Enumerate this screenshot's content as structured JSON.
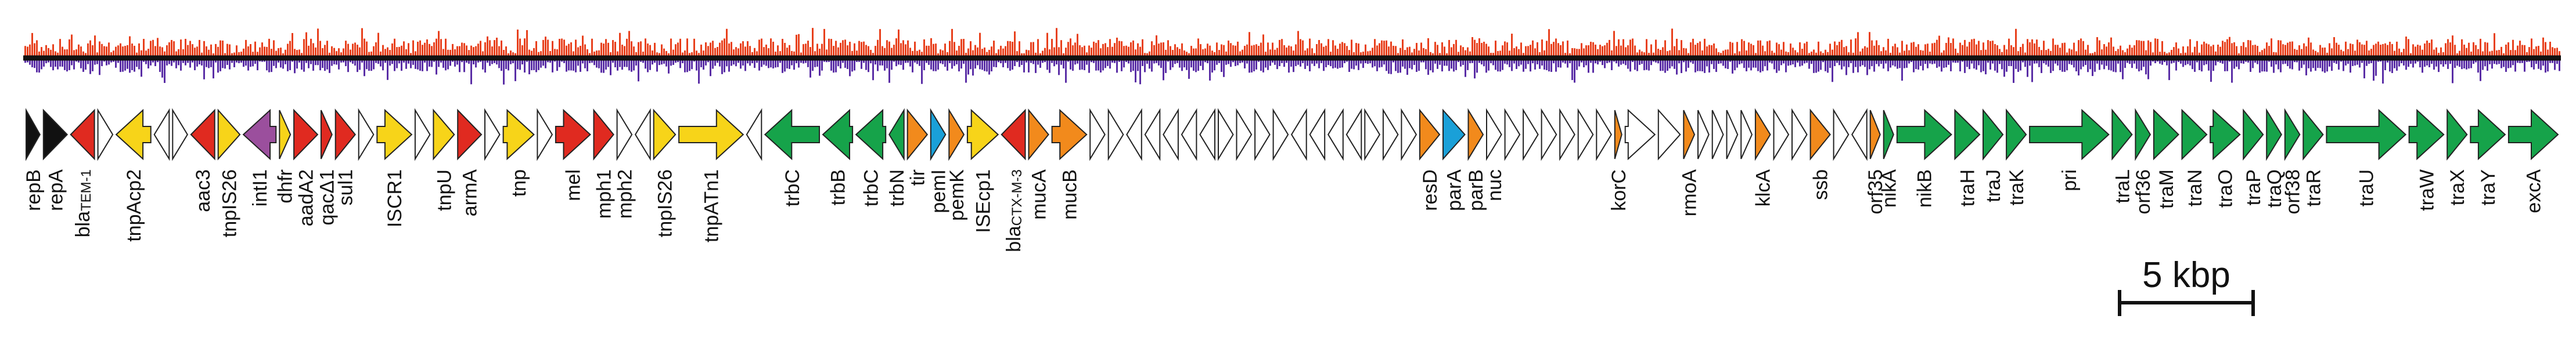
{
  "figure": {
    "description": "plasmid-gene-map"
  },
  "colors": {
    "gc_positive": "#e8401c",
    "gc_negative": "#5a2ea6",
    "baseline": "#111111",
    "black": "#111111",
    "red": "#e02a20",
    "yellow": "#f7d419",
    "white": "#ffffff",
    "purple": "#9b4f9d",
    "green": "#16a34a",
    "orange": "#f28a1c",
    "blue": "#1aa0d8"
  },
  "scale_bar": {
    "label": "5 kbp",
    "length_kbp": 5
  },
  "genes": [
    {
      "color": "black",
      "dir": "r",
      "len": 28,
      "label": "repB"
    },
    {
      "color": "black",
      "dir": "r",
      "len": 48,
      "label": "repA"
    },
    {
      "color": "red",
      "dir": "l",
      "len": 48,
      "label": "blaTEM-1",
      "sub": true
    },
    {
      "color": "white",
      "dir": "r",
      "len": 30
    },
    {
      "color": "yellow",
      "dir": "l",
      "len": 70,
      "label": "tnpAcp2"
    },
    {
      "color": "white",
      "dir": "l",
      "len": 30
    },
    {
      "color": "white",
      "dir": "r",
      "len": 30
    },
    {
      "color": "red",
      "dir": "l",
      "len": 48,
      "label": "aac3"
    },
    {
      "color": "yellow",
      "dir": "r",
      "len": 44,
      "label": "tnpIS26"
    },
    {
      "color": "purple",
      "dir": "l",
      "len": 66,
      "label": "intI1"
    },
    {
      "color": "yellow",
      "dir": "r",
      "len": 22,
      "label": "dhfr"
    },
    {
      "color": "red",
      "dir": "r",
      "len": 48,
      "label": "aadA2"
    },
    {
      "color": "red",
      "dir": "r",
      "len": 22,
      "label": "qacΔ1"
    },
    {
      "color": "red",
      "dir": "r",
      "len": 40,
      "label": "sul1"
    },
    {
      "color": "white",
      "dir": "r",
      "len": 30
    },
    {
      "color": "yellow",
      "dir": "r",
      "len": 70,
      "label": "ISCR1"
    },
    {
      "color": "white",
      "dir": "r",
      "len": 30
    },
    {
      "color": "yellow",
      "dir": "r",
      "len": 42,
      "label": "tnpU"
    },
    {
      "color": "red",
      "dir": "r",
      "len": 48,
      "label": "armA"
    },
    {
      "color": "white",
      "dir": "r",
      "len": 30
    },
    {
      "color": "yellow",
      "dir": "r",
      "len": 62,
      "label": "tnp"
    },
    {
      "color": "white",
      "dir": "r",
      "len": 30
    },
    {
      "color": "red",
      "dir": "r",
      "len": 70,
      "label": "mel"
    },
    {
      "color": "red",
      "dir": "r",
      "len": 40,
      "label": "mph1"
    },
    {
      "color": "white",
      "dir": "r",
      "len": 30,
      "label": "mph2"
    },
    {
      "color": "white",
      "dir": "l",
      "len": 30
    },
    {
      "color": "yellow",
      "dir": "r",
      "len": 44,
      "label": "tnpIS26"
    },
    {
      "color": "yellow",
      "dir": "r",
      "len": 130,
      "label": "tnpATn1"
    },
    {
      "color": "white",
      "dir": "l",
      "len": 30
    },
    {
      "color": "green",
      "dir": "l",
      "len": 110,
      "label": "trbC"
    },
    {
      "color": "green",
      "dir": "l",
      "len": 60,
      "label": "trbB"
    },
    {
      "color": "green",
      "dir": "l",
      "len": 60,
      "label": "trbC"
    },
    {
      "color": "green",
      "dir": "l",
      "len": 30,
      "label": "trbN"
    },
    {
      "color": "orange",
      "dir": "r",
      "len": 40,
      "label": "tir"
    },
    {
      "color": "blue",
      "dir": "r",
      "len": 30,
      "label": "pemI"
    },
    {
      "color": "orange",
      "dir": "r",
      "len": 30,
      "label": "pemK"
    },
    {
      "color": "yellow",
      "dir": "r",
      "len": 62,
      "label": "ISEcp1"
    },
    {
      "color": "red",
      "dir": "l",
      "len": 48,
      "label": "blaCTX-M-3",
      "sub": true
    },
    {
      "color": "orange",
      "dir": "r",
      "len": 40,
      "label": "mucA"
    },
    {
      "color": "orange",
      "dir": "r",
      "len": 70,
      "label": "mucB"
    },
    {
      "color": "white",
      "dir": "r",
      "len": 30
    },
    {
      "color": "white",
      "dir": "r",
      "len": 30
    },
    {
      "color": "white",
      "dir": "l",
      "len": 30
    },
    {
      "color": "white",
      "dir": "l",
      "len": 30
    },
    {
      "color": "white",
      "dir": "l",
      "len": 30
    },
    {
      "color": "white",
      "dir": "l",
      "len": 30
    },
    {
      "color": "white",
      "dir": "l",
      "len": 30
    },
    {
      "color": "white",
      "dir": "r",
      "len": 30
    },
    {
      "color": "white",
      "dir": "r",
      "len": 30
    },
    {
      "color": "white",
      "dir": "r",
      "len": 30
    },
    {
      "color": "white",
      "dir": "r",
      "len": 30
    },
    {
      "color": "white",
      "dir": "l",
      "len": 30
    },
    {
      "color": "white",
      "dir": "l",
      "len": 30
    },
    {
      "color": "white",
      "dir": "l",
      "len": 30
    },
    {
      "color": "white",
      "dir": "l",
      "len": 30
    },
    {
      "color": "white",
      "dir": "r",
      "len": 30
    },
    {
      "color": "white",
      "dir": "r",
      "len": 30
    },
    {
      "color": "white",
      "dir": "r",
      "len": 30
    },
    {
      "color": "orange",
      "dir": "r",
      "len": 40,
      "label": "resD"
    },
    {
      "color": "blue",
      "dir": "r",
      "len": 44,
      "label": "parA"
    },
    {
      "color": "orange",
      "dir": "r",
      "len": 30,
      "label": "parB"
    },
    {
      "color": "white",
      "dir": "r",
      "len": 30,
      "label": "nuc"
    },
    {
      "color": "white",
      "dir": "r",
      "len": 30
    },
    {
      "color": "white",
      "dir": "r",
      "len": 30
    },
    {
      "color": "white",
      "dir": "r",
      "len": 30
    },
    {
      "color": "white",
      "dir": "r",
      "len": 30
    },
    {
      "color": "white",
      "dir": "r",
      "len": 30
    },
    {
      "color": "white",
      "dir": "r",
      "len": 30
    },
    {
      "color": "orange",
      "dir": "r",
      "len": 14,
      "label": "korC"
    },
    {
      "color": "white",
      "dir": "r",
      "len": 60
    },
    {
      "color": "white",
      "dir": "r",
      "len": 44
    },
    {
      "color": "orange",
      "dir": "r",
      "len": 22,
      "label": "rmoA"
    },
    {
      "color": "white",
      "dir": "r",
      "len": 22
    },
    {
      "color": "white",
      "dir": "r",
      "len": 22
    },
    {
      "color": "white",
      "dir": "r",
      "len": 22
    },
    {
      "color": "white",
      "dir": "r",
      "len": 22
    },
    {
      "color": "orange",
      "dir": "r",
      "len": 30,
      "label": "klcA"
    },
    {
      "color": "white",
      "dir": "r",
      "len": 30
    },
    {
      "color": "white",
      "dir": "r",
      "len": 30
    },
    {
      "color": "orange",
      "dir": "r",
      "len": 40,
      "label": "ssb"
    },
    {
      "color": "white",
      "dir": "r",
      "len": 30
    },
    {
      "color": "white",
      "dir": "l",
      "len": 30
    },
    {
      "color": "orange",
      "dir": "r",
      "len": 20,
      "label": "orf35"
    },
    {
      "color": "green",
      "dir": "r",
      "len": 20,
      "label": "nikA"
    },
    {
      "color": "green",
      "dir": "r",
      "len": 110,
      "label": "nikB"
    },
    {
      "color": "green",
      "dir": "r",
      "len": 50,
      "label": "traH"
    },
    {
      "color": "green",
      "dir": "r",
      "len": 40,
      "label": "traJ"
    },
    {
      "color": "green",
      "dir": "r",
      "len": 40,
      "label": "traK"
    },
    {
      "color": "green",
      "dir": "r",
      "len": 160,
      "label": "pri"
    },
    {
      "color": "green",
      "dir": "r",
      "len": 40,
      "label": "traL"
    },
    {
      "color": "green",
      "dir": "r",
      "len": 30,
      "label": "orf36"
    },
    {
      "color": "green",
      "dir": "r",
      "len": 50,
      "label": "traM"
    },
    {
      "color": "green",
      "dir": "r",
      "len": 50,
      "label": "traN"
    },
    {
      "color": "green",
      "dir": "r",
      "len": 60,
      "label": "traO"
    },
    {
      "color": "green",
      "dir": "r",
      "len": 40,
      "label": "traP"
    },
    {
      "color": "green",
      "dir": "r",
      "len": 30,
      "label": "traQ"
    },
    {
      "color": "green",
      "dir": "r",
      "len": 30,
      "label": "orf38"
    },
    {
      "color": "green",
      "dir": "r",
      "len": 40,
      "label": "traR"
    },
    {
      "color": "green",
      "dir": "r",
      "len": 160,
      "label": "traU"
    },
    {
      "color": "green",
      "dir": "r",
      "len": 70,
      "label": "traW"
    },
    {
      "color": "green",
      "dir": "r",
      "len": 40,
      "label": "traX"
    },
    {
      "color": "green",
      "dir": "r",
      "len": 70,
      "label": "traY"
    },
    {
      "color": "green",
      "dir": "r",
      "len": 100,
      "label": "excA"
    }
  ]
}
